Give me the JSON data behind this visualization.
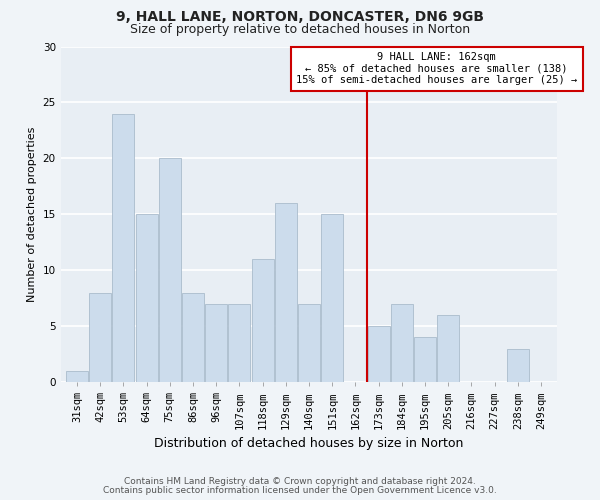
{
  "title": "9, HALL LANE, NORTON, DONCASTER, DN6 9GB",
  "subtitle": "Size of property relative to detached houses in Norton",
  "xlabel": "Distribution of detached houses by size in Norton",
  "ylabel": "Number of detached properties",
  "bar_labels": [
    "31sqm",
    "42sqm",
    "53sqm",
    "64sqm",
    "75sqm",
    "86sqm",
    "96sqm",
    "107sqm",
    "118sqm",
    "129sqm",
    "140sqm",
    "151sqm",
    "162sqm",
    "173sqm",
    "184sqm",
    "195sqm",
    "205sqm",
    "216sqm",
    "227sqm",
    "238sqm",
    "249sqm"
  ],
  "bar_values": [
    1,
    8,
    24,
    15,
    20,
    8,
    7,
    7,
    11,
    16,
    7,
    15,
    0,
    5,
    7,
    4,
    6,
    0,
    0,
    3,
    0
  ],
  "bar_color": "#ccdcec",
  "bar_edgecolor": "#aabccc",
  "vline_x": 12.5,
  "vline_color": "#cc0000",
  "ylim": [
    0,
    30
  ],
  "yticks": [
    0,
    5,
    10,
    15,
    20,
    25,
    30
  ],
  "annotation_title": "9 HALL LANE: 162sqm",
  "annotation_line1": "← 85% of detached houses are smaller (138)",
  "annotation_line2": "15% of semi-detached houses are larger (25) →",
  "annotation_box_color": "#ffffff",
  "annotation_box_edgecolor": "#cc0000",
  "footer1": "Contains HM Land Registry data © Crown copyright and database right 2024.",
  "footer2": "Contains public sector information licensed under the Open Government Licence v3.0.",
  "background_color": "#f0f4f8",
  "plot_background_color": "#e8eef4",
  "grid_color": "#ffffff",
  "title_fontsize": 10,
  "subtitle_fontsize": 9,
  "xlabel_fontsize": 9,
  "ylabel_fontsize": 8,
  "tick_fontsize": 7.5,
  "footer_fontsize": 6.5
}
